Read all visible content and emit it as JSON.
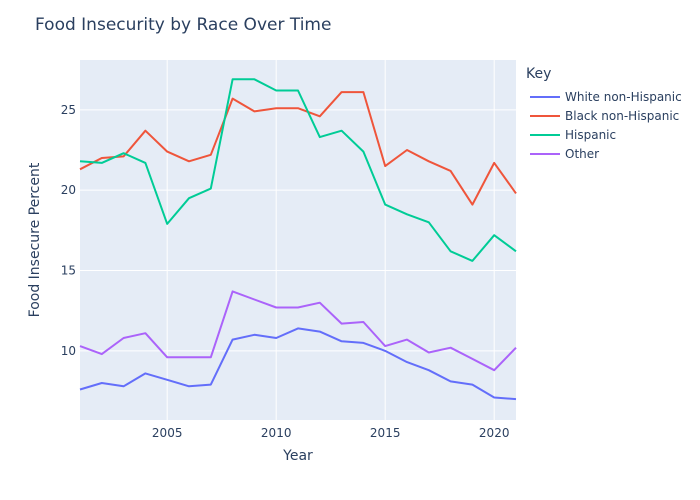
{
  "chart_data": {
    "type": "line",
    "title": "Food Insecurity by Race Over Time",
    "xlabel": "Year",
    "ylabel": "Food Insecure Percent",
    "xlim": [
      2001,
      2021
    ],
    "ylim": [
      5.7,
      28.1
    ],
    "x_ticks": [
      2005,
      2010,
      2015,
      2020
    ],
    "y_ticks": [
      10,
      15,
      20,
      25
    ],
    "x": [
      2001,
      2002,
      2003,
      2004,
      2005,
      2006,
      2007,
      2008,
      2009,
      2010,
      2011,
      2012,
      2013,
      2014,
      2015,
      2016,
      2017,
      2018,
      2019,
      2020,
      2021
    ],
    "legend": {
      "title": "Key",
      "position": "right"
    },
    "grid": true,
    "plot_background": "#e5ecf6",
    "series": [
      {
        "name": "White non-Hispanic",
        "color": "#636efa",
        "values": [
          7.6,
          8.0,
          7.8,
          8.6,
          8.2,
          7.8,
          7.9,
          10.7,
          11.0,
          10.8,
          11.4,
          11.2,
          10.6,
          10.5,
          10.0,
          9.3,
          8.8,
          8.1,
          7.9,
          7.1,
          7.0
        ]
      },
      {
        "name": "Black non-Hispanic",
        "color": "#ef553b",
        "values": [
          21.3,
          22.0,
          22.1,
          23.7,
          22.4,
          21.8,
          22.2,
          25.7,
          24.9,
          25.1,
          25.1,
          24.6,
          26.1,
          26.1,
          21.5,
          22.5,
          21.8,
          21.2,
          19.1,
          21.7,
          19.8
        ]
      },
      {
        "name": "Hispanic",
        "color": "#00cc96",
        "values": [
          21.8,
          21.7,
          22.3,
          21.7,
          17.9,
          19.5,
          20.1,
          26.9,
          26.9,
          26.2,
          26.2,
          23.3,
          23.7,
          22.4,
          19.1,
          18.5,
          18.0,
          16.2,
          15.6,
          17.2,
          16.2
        ]
      },
      {
        "name": "Other",
        "color": "#ab63fa",
        "values": [
          10.3,
          9.8,
          10.8,
          11.1,
          9.6,
          9.6,
          9.6,
          13.7,
          13.2,
          12.7,
          12.7,
          13.0,
          11.7,
          11.8,
          10.3,
          10.7,
          9.9,
          10.2,
          9.5,
          8.8,
          10.2
        ]
      }
    ]
  }
}
